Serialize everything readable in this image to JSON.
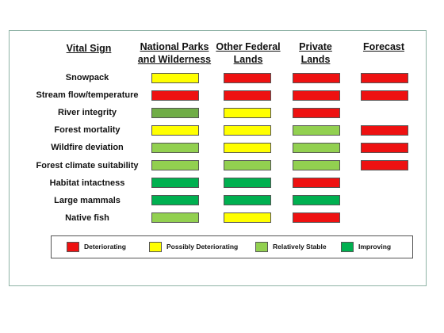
{
  "chart_data": {
    "type": "table",
    "row_header": "Vital Sign",
    "columns": [
      {
        "key": "np",
        "label_lines": [
          "National Parks",
          "and Wilderness"
        ]
      },
      {
        "key": "ofl",
        "label_lines": [
          "Other Federal",
          "Lands"
        ]
      },
      {
        "key": "pl",
        "label_lines": [
          "Private",
          "Lands"
        ]
      },
      {
        "key": "fc",
        "label_lines": [
          "Forecast"
        ]
      }
    ],
    "rows": [
      {
        "label": "Snowpack",
        "values": [
          "Possibly Deteriorating",
          "Deteriorating",
          "Deteriorating",
          "Deteriorating"
        ]
      },
      {
        "label": "Stream flow/temperature",
        "values": [
          "Deteriorating",
          "Deteriorating",
          "Deteriorating",
          "Deteriorating"
        ]
      },
      {
        "label": "River integrity",
        "values": [
          "Improving",
          "Possibly Deteriorating",
          "Deteriorating",
          null
        ]
      },
      {
        "label": "Forest mortality",
        "values": [
          "Possibly Deteriorating",
          "Possibly Deteriorating",
          "Relatively Stable",
          "Deteriorating"
        ]
      },
      {
        "label": "Wildfire deviation",
        "values": [
          "Relatively Stable",
          "Possibly Deteriorating",
          "Relatively Stable",
          "Deteriorating"
        ]
      },
      {
        "label": "Forest climate suitability",
        "values": [
          "Relatively Stable",
          "Relatively Stable",
          "Relatively Stable",
          "Deteriorating"
        ]
      },
      {
        "label": "Habitat intactness",
        "values": [
          "Improving",
          "Improving",
          "Deteriorating",
          null
        ]
      },
      {
        "label": "Large mammals",
        "values": [
          "Improving",
          "Improving",
          "Improving",
          null
        ]
      },
      {
        "label": "Native fish",
        "values": [
          "Relatively Stable",
          "Possibly Deteriorating",
          "Deteriorating",
          null
        ]
      }
    ],
    "legend": [
      {
        "label": "Deteriorating",
        "color": "#ee1111"
      },
      {
        "label": "Possibly Deteriorating",
        "color": "#ffff00"
      },
      {
        "label": "Relatively Stable",
        "color": "#92d050"
      },
      {
        "label": "Improving",
        "color": "#00b050"
      }
    ],
    "legend_placement": "bottom",
    "category_colors": {
      "Deteriorating": "#ee1111",
      "Possibly Deteriorating": "#ffff00",
      "Relatively Stable": "#92d050",
      "Improving": "#00b050"
    },
    "overrides": {
      "River integrity|np": "#70ad47"
    }
  }
}
